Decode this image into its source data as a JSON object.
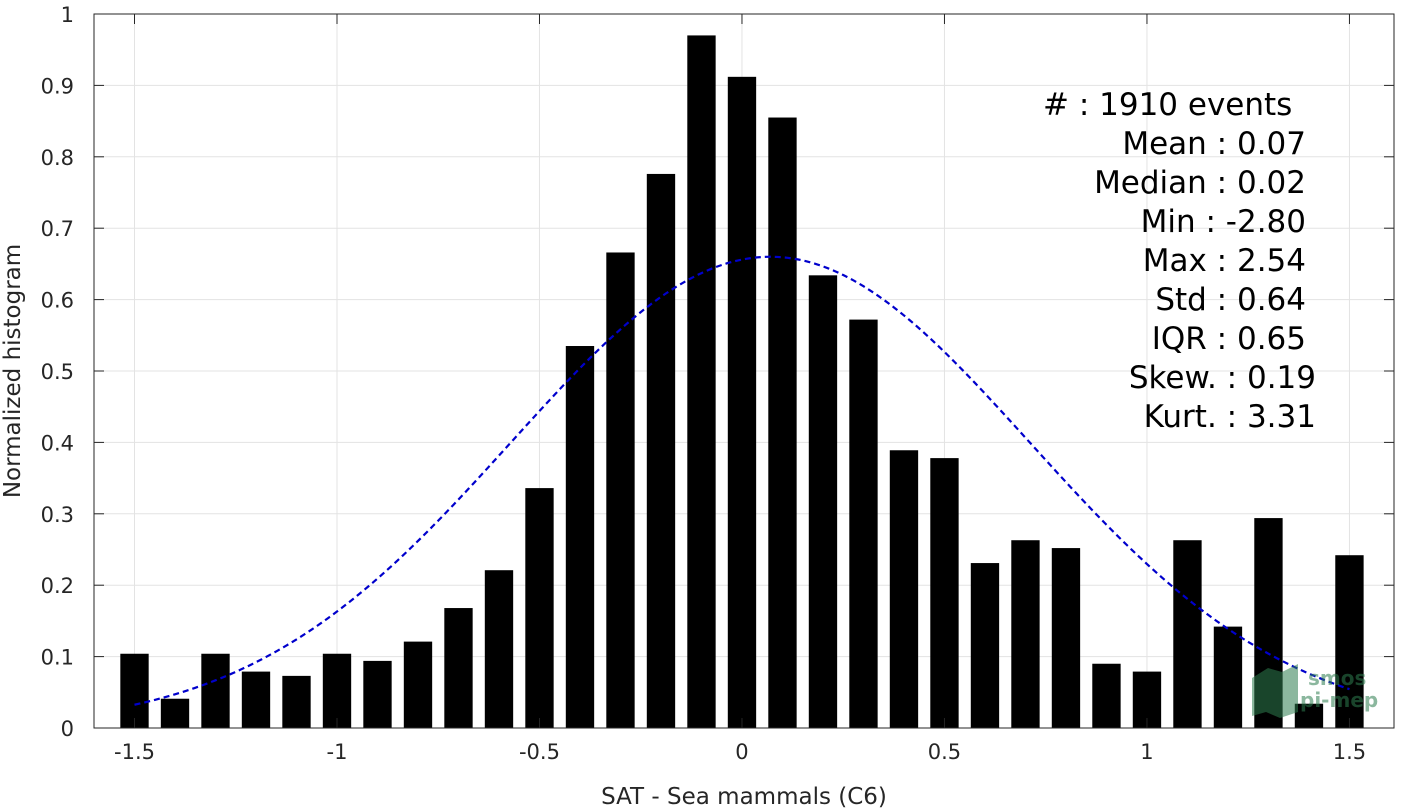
{
  "chart_data": {
    "type": "bar",
    "xlabel": "SAT - Sea mammals (C6)",
    "ylabel": "Normalized histogram",
    "xlim": [
      -1.6,
      1.61
    ],
    "ylim": [
      0,
      1
    ],
    "x_ticks": [
      -1.5,
      -1,
      -0.5,
      0,
      0.5,
      1,
      1.5
    ],
    "x_tick_labels": [
      "-1.5",
      "-1",
      "-0.5",
      "0",
      "0.5",
      "1",
      "1.5"
    ],
    "y_ticks": [
      0,
      0.1,
      0.2,
      0.3,
      0.4,
      0.5,
      0.6,
      0.7,
      0.8,
      0.9,
      1
    ],
    "y_tick_labels": [
      "0",
      "0.1",
      "0.2",
      "0.3",
      "0.4",
      "0.5",
      "0.6",
      "0.7",
      "0.8",
      "0.9",
      "1"
    ],
    "grid": true,
    "bar_color": "#000000",
    "bar_width": 0.07,
    "x": [
      -1.5,
      -1.4,
      -1.3,
      -1.2,
      -1.1,
      -1.0,
      -0.9,
      -0.8,
      -0.7,
      -0.6,
      -0.5,
      -0.4,
      -0.3,
      -0.2,
      -0.1,
      0.0,
      0.1,
      0.2,
      0.3,
      0.4,
      0.5,
      0.6,
      0.7,
      0.8,
      0.9,
      1.0,
      1.1,
      1.2,
      1.3,
      1.4,
      1.5
    ],
    "values": [
      0.104,
      0.041,
      0.104,
      0.079,
      0.073,
      0.104,
      0.094,
      0.121,
      0.168,
      0.221,
      0.336,
      0.535,
      0.666,
      0.776,
      0.97,
      0.912,
      0.855,
      0.634,
      0.572,
      0.389,
      0.378,
      0.231,
      0.263,
      0.252,
      0.09,
      0.079,
      0.263,
      0.142,
      0.294,
      0.034,
      0.242
    ],
    "fit_curve": {
      "style": "dashed",
      "color": "#0000cc",
      "mean": 0.07,
      "std": 0.64,
      "peak": 0.66,
      "x_range": [
        -1.5,
        1.5
      ]
    },
    "stats": [
      {
        "label": "#",
        "value": ": 1910 events"
      },
      {
        "label": "Mean",
        "value": ": 0.07"
      },
      {
        "label": "Median",
        "value": ": 0.02"
      },
      {
        "label": "Min",
        "value": ": -2.80"
      },
      {
        "label": "Max",
        "value": ": 2.54"
      },
      {
        "label": "Std",
        "value": ": 0.64"
      },
      {
        "label": "IQR",
        "value": ": 0.65"
      },
      {
        "label": "Skew.",
        "value": ": 0.19"
      },
      {
        "label": "Kurt.",
        "value": ": 3.31"
      }
    ]
  },
  "watermark": {
    "line1": "smos",
    "line2": "pi-mep",
    "color": "#2e7d4f"
  }
}
